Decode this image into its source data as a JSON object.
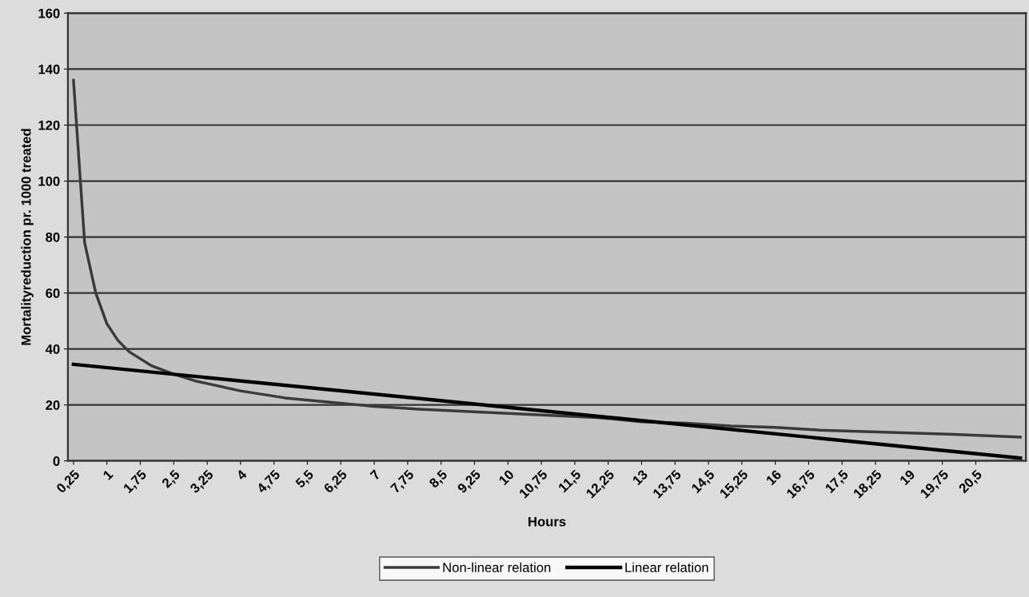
{
  "chart_data": {
    "type": "line",
    "xlabel": "Hours",
    "ylabel": "Mortalityreduction pr. 1000 treated",
    "xlim": [
      0.125,
      21.625
    ],
    "xticks": [
      {
        "value": 0.25,
        "label": "0,25"
      },
      {
        "value": 1,
        "label": "1"
      },
      {
        "value": 1.75,
        "label": "1,75"
      },
      {
        "value": 2.5,
        "label": "2,5"
      },
      {
        "value": 3.25,
        "label": "3,25"
      },
      {
        "value": 4,
        "label": "4"
      },
      {
        "value": 4.75,
        "label": "4,75"
      },
      {
        "value": 5.5,
        "label": "5,5"
      },
      {
        "value": 6.25,
        "label": "6,25"
      },
      {
        "value": 7,
        "label": "7"
      },
      {
        "value": 7.75,
        "label": "7,75"
      },
      {
        "value": 8.5,
        "label": "8,5"
      },
      {
        "value": 9.25,
        "label": "9,25"
      },
      {
        "value": 10,
        "label": "10"
      },
      {
        "value": 10.75,
        "label": "10,75"
      },
      {
        "value": 11.5,
        "label": "11,5"
      },
      {
        "value": 12.25,
        "label": "12,25"
      },
      {
        "value": 13,
        "label": "13"
      },
      {
        "value": 13.75,
        "label": "13,75"
      },
      {
        "value": 14.5,
        "label": "14,5"
      },
      {
        "value": 15.25,
        "label": "15,25"
      },
      {
        "value": 16,
        "label": "16"
      },
      {
        "value": 16.75,
        "label": "16,75"
      },
      {
        "value": 17.5,
        "label": "17,5"
      },
      {
        "value": 18.25,
        "label": "18,25"
      },
      {
        "value": 19,
        "label": "19"
      },
      {
        "value": 19.75,
        "label": "19,75"
      },
      {
        "value": 20.5,
        "label": "20,5"
      }
    ],
    "ylim": [
      0,
      160
    ],
    "yticks": [
      0,
      20,
      40,
      60,
      80,
      100,
      120,
      140,
      160
    ],
    "grid": "y",
    "legend": "bottom",
    "marker": "none",
    "line_style": "solid",
    "series": [
      {
        "name": "Non-linear relation",
        "color": "#3a3a3a",
        "x": [
          0.25,
          0.5,
          0.75,
          1,
          1.25,
          1.5,
          2,
          2.5,
          3,
          4,
          5,
          6,
          7,
          8,
          10,
          12,
          13,
          14,
          15,
          16,
          17,
          18,
          19,
          20,
          21.5
        ],
        "values": [
          136,
          78,
          60,
          49,
          43,
          39,
          34,
          31,
          28.5,
          25,
          22.5,
          21,
          19.5,
          18.5,
          17,
          15.5,
          14,
          13.5,
          12.5,
          12,
          11,
          10.5,
          10,
          9.5,
          8.5
        ]
      },
      {
        "name": "Linear relation",
        "color": "#000000",
        "x": [
          0.25,
          21.5
        ],
        "values": [
          34.5,
          1
        ]
      }
    ]
  }
}
